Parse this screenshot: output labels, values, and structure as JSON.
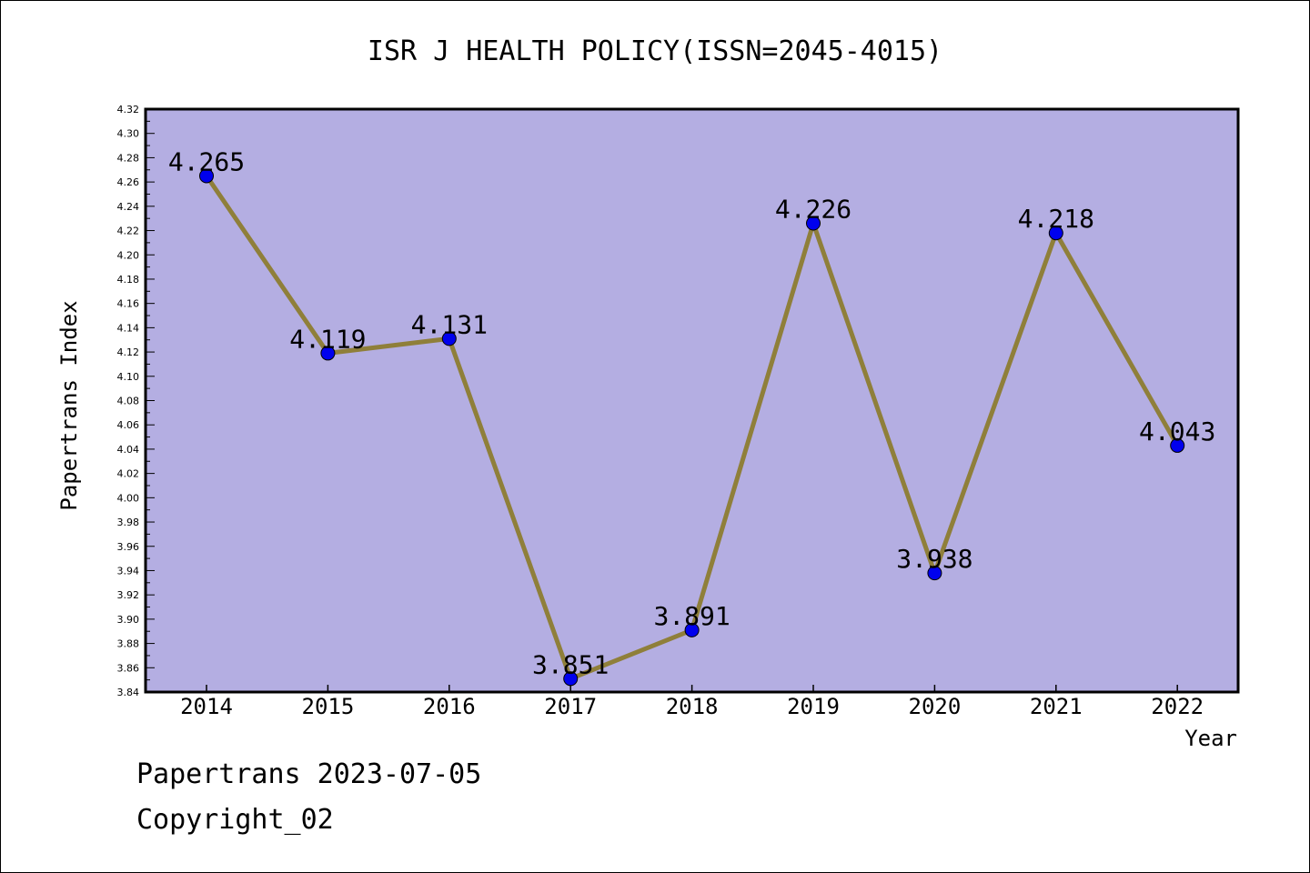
{
  "chart_data": {
    "type": "line",
    "title": "ISR J HEALTH POLICY(ISSN=2045-4015)",
    "xlabel": "Year",
    "ylabel": "Papertrans Index",
    "categories": [
      "2014",
      "2015",
      "2016",
      "2017",
      "2018",
      "2019",
      "2020",
      "2021",
      "2022"
    ],
    "values": [
      4.265,
      4.119,
      4.131,
      3.851,
      3.891,
      4.226,
      3.938,
      4.218,
      4.043
    ],
    "data_labels": [
      "4.265",
      "4.119",
      "4.131",
      "3.851",
      "3.891",
      "4.226",
      "3.938",
      "4.218",
      "4.043"
    ],
    "ylim": [
      3.84,
      4.32
    ],
    "ytick_step": 0.02,
    "grid": false,
    "colors": {
      "plot_background": "#b4aee2",
      "line": "#8f7f3a",
      "marker": "#0000ee"
    }
  },
  "footer": {
    "line1": "Papertrans 2023-07-05",
    "line2": "Copyright_02"
  }
}
